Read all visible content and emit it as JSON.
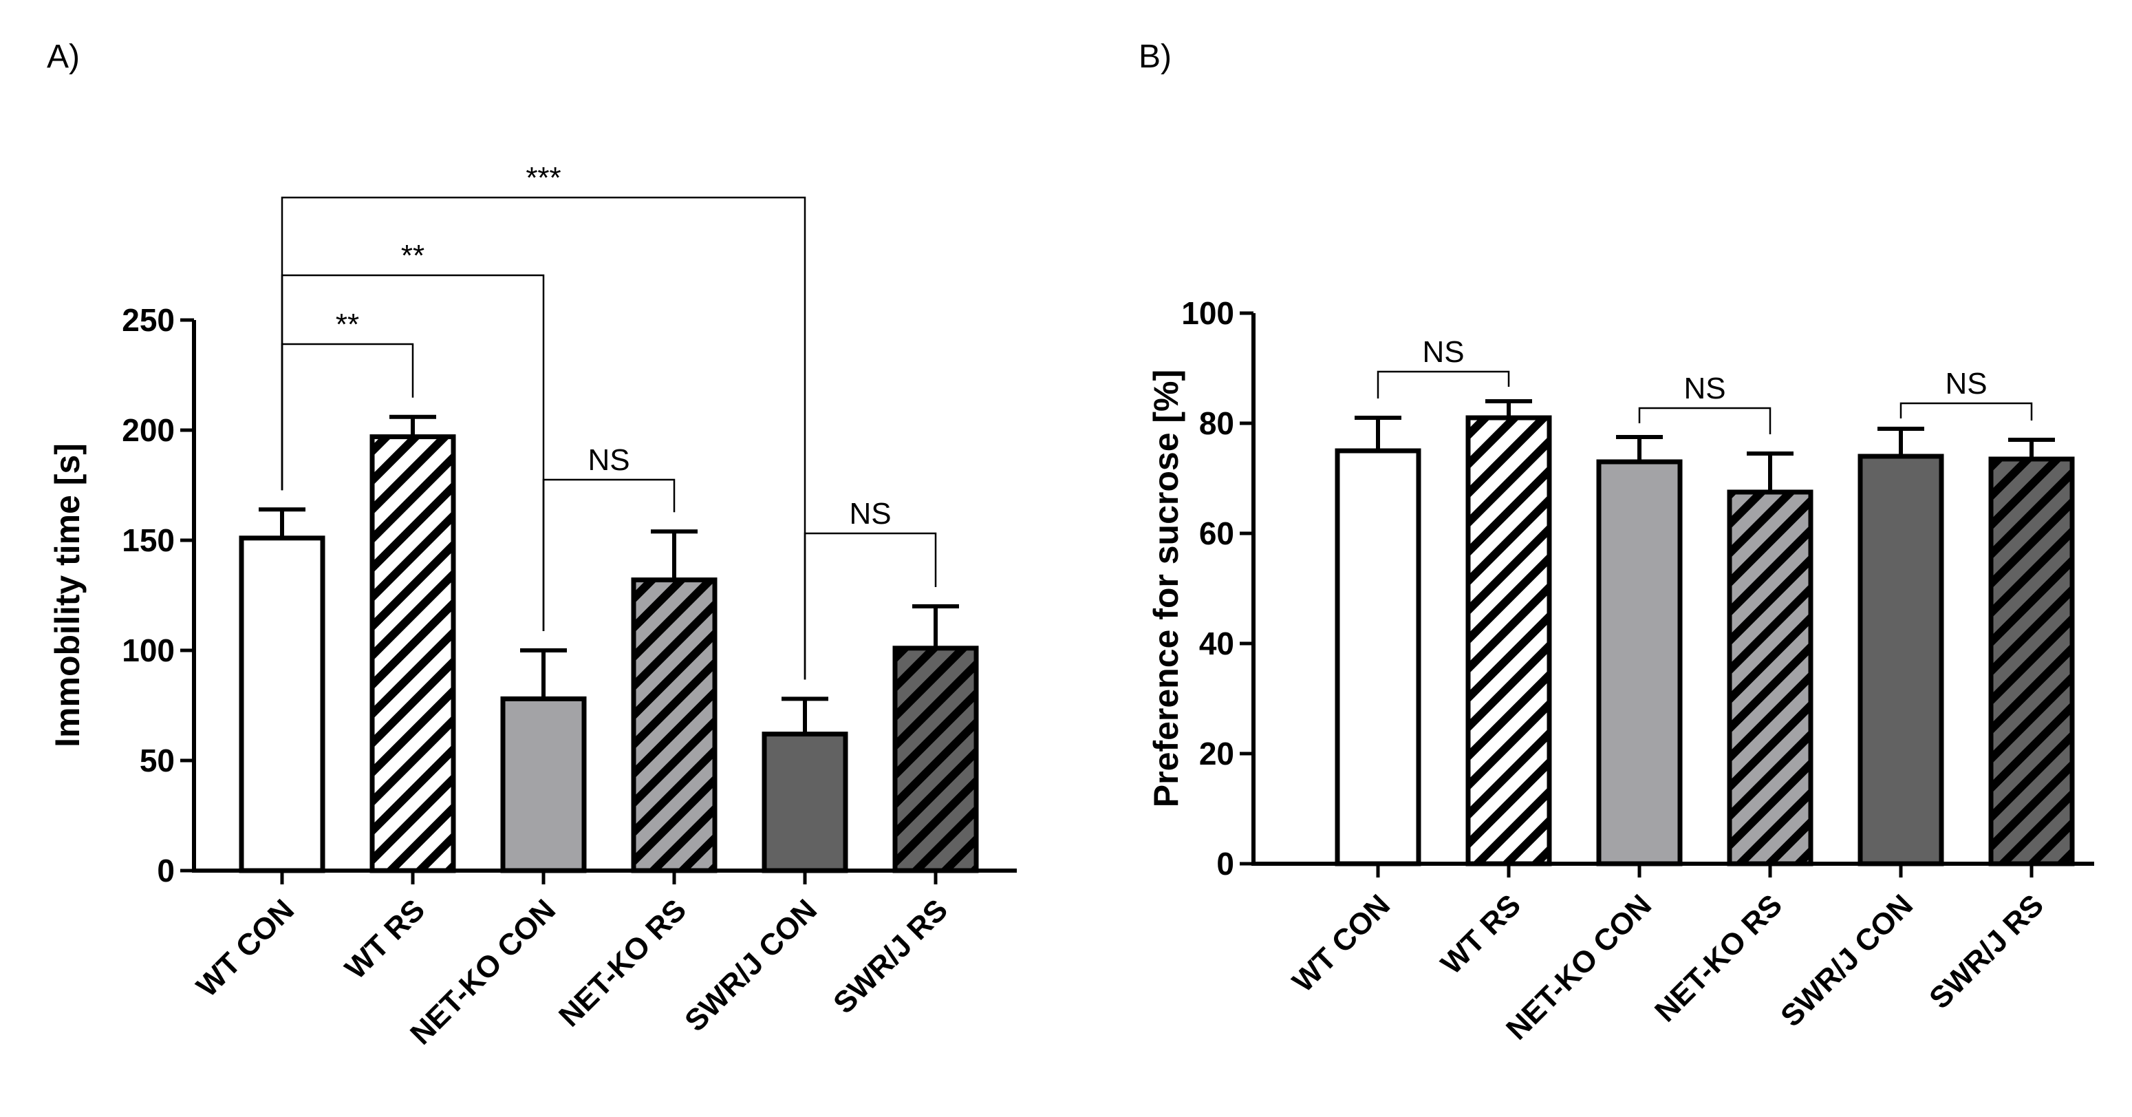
{
  "panels": {
    "a_label": "A)",
    "b_label": "B)"
  },
  "chart_data": [
    {
      "panel": "A)",
      "type": "bar",
      "categories": [
        "WT CON",
        "WT RS",
        "NET-KO CON",
        "NET-KO RS",
        "SWR/J CON",
        "SWR/J RS"
      ],
      "values": [
        151,
        197,
        78,
        132,
        62,
        101
      ],
      "errors": [
        13,
        9,
        22,
        22,
        16,
        19
      ],
      "fills": [
        "#ffffff",
        "#ffffff",
        "#a3a3a6",
        "#a3a3a6",
        "#626262",
        "#626262"
      ],
      "hatched": [
        false,
        true,
        false,
        true,
        false,
        true
      ],
      "title": "",
      "xlabel": "",
      "ylabel": "Immobility time [s]",
      "ylim": [
        0,
        250
      ],
      "yticks": [
        "0",
        "50",
        "100",
        "150",
        "200",
        "250"
      ],
      "grid": false,
      "comparisons": [
        {
          "from": 0,
          "to": 1,
          "label": "**"
        },
        {
          "from": 0,
          "to": 2,
          "label": "**"
        },
        {
          "from": 0,
          "to": 4,
          "label": "***"
        },
        {
          "from": 2,
          "to": 3,
          "label": "NS"
        },
        {
          "from": 4,
          "to": 5,
          "label": "NS"
        }
      ]
    },
    {
      "panel": "B)",
      "type": "bar",
      "categories": [
        "WT CON",
        "WT RS",
        "NET-KO CON",
        "NET-KO RS",
        "SWR/J CON",
        "SWR/J RS"
      ],
      "values": [
        75,
        81,
        73,
        67.5,
        74,
        73.5
      ],
      "errors": [
        6,
        3,
        4.5,
        7,
        5,
        3.5
      ],
      "fills": [
        "#ffffff",
        "#ffffff",
        "#a3a3a6",
        "#a3a3a6",
        "#626262",
        "#626262"
      ],
      "hatched": [
        false,
        true,
        false,
        true,
        false,
        true
      ],
      "title": "",
      "xlabel": "",
      "ylabel": "Preference for sucrose [%]",
      "ylim": [
        0,
        100
      ],
      "yticks": [
        "0",
        "20",
        "40",
        "60",
        "80",
        "100"
      ],
      "grid": false,
      "comparisons": [
        {
          "from": 0,
          "to": 1,
          "label": "NS"
        },
        {
          "from": 2,
          "to": 3,
          "label": "NS"
        },
        {
          "from": 4,
          "to": 5,
          "label": "NS"
        }
      ]
    }
  ]
}
